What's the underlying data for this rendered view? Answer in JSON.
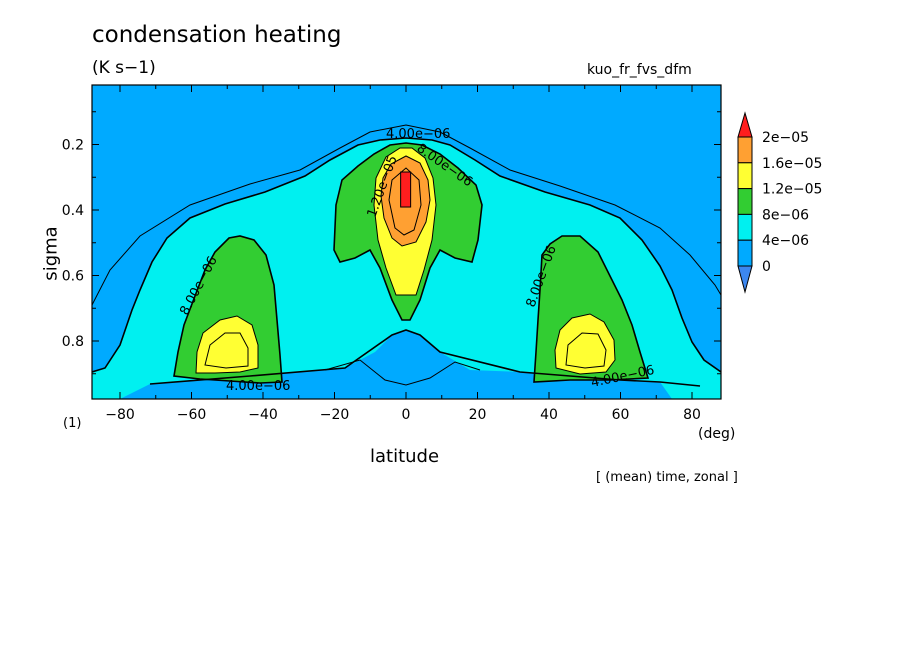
{
  "chart_data": {
    "type": "contour",
    "title": "condensation heating",
    "units": "(K s−1)",
    "run_id": "kuo_fr_fvs_dfm",
    "xlabel": "latitude",
    "x_unit": "(deg)",
    "ylabel": "sigma",
    "frame_label": "(1)",
    "note": "[ (mean) time, zonal ]",
    "xlim": [
      -88,
      88
    ],
    "ylim": [
      0.98,
      0.03
    ],
    "x_ticks": [
      -80,
      -60,
      -40,
      -20,
      0,
      20,
      40,
      60,
      80
    ],
    "x_tick_labels": [
      "−80",
      "−60",
      "−40",
      "−20",
      "0",
      "20",
      "40",
      "60",
      "80"
    ],
    "y_ticks": [
      0.2,
      0.4,
      0.6,
      0.8
    ],
    "y_tick_labels": [
      "0.2",
      "0.4",
      "0.6",
      "0.8"
    ],
    "colorbar": {
      "levels": [
        0,
        4e-06,
        8e-06,
        1.2e-05,
        1.6e-05,
        2e-05
      ],
      "labels": [
        "0",
        "4e−06",
        "8e−06",
        "1.2e−05",
        "1.6e−05",
        "2e−05"
      ],
      "colors": [
        "#3c87f0",
        "#00aaff",
        "#00f0f0",
        "#32cd32",
        "#ffff33",
        "#ffa032",
        "#ff1e1e"
      ]
    },
    "contour_labels": [
      "4.00e−06",
      "8.00e−06",
      "1.20e−05",
      "4.00e−06",
      "8.00e−06",
      "8.00e−06",
      "4.00e−06"
    ],
    "fields": [
      {
        "name": "tropical_max",
        "lat": 0,
        "sigma": 0.35,
        "value": 2.1e-05
      },
      {
        "name": "sh_midlatitude_max",
        "lat": -52,
        "sigma": 0.84,
        "value": 1.3e-05
      },
      {
        "name": "nh_midlatitude_max",
        "lat": 52,
        "sigma": 0.83,
        "value": 1.35e-05
      }
    ]
  }
}
